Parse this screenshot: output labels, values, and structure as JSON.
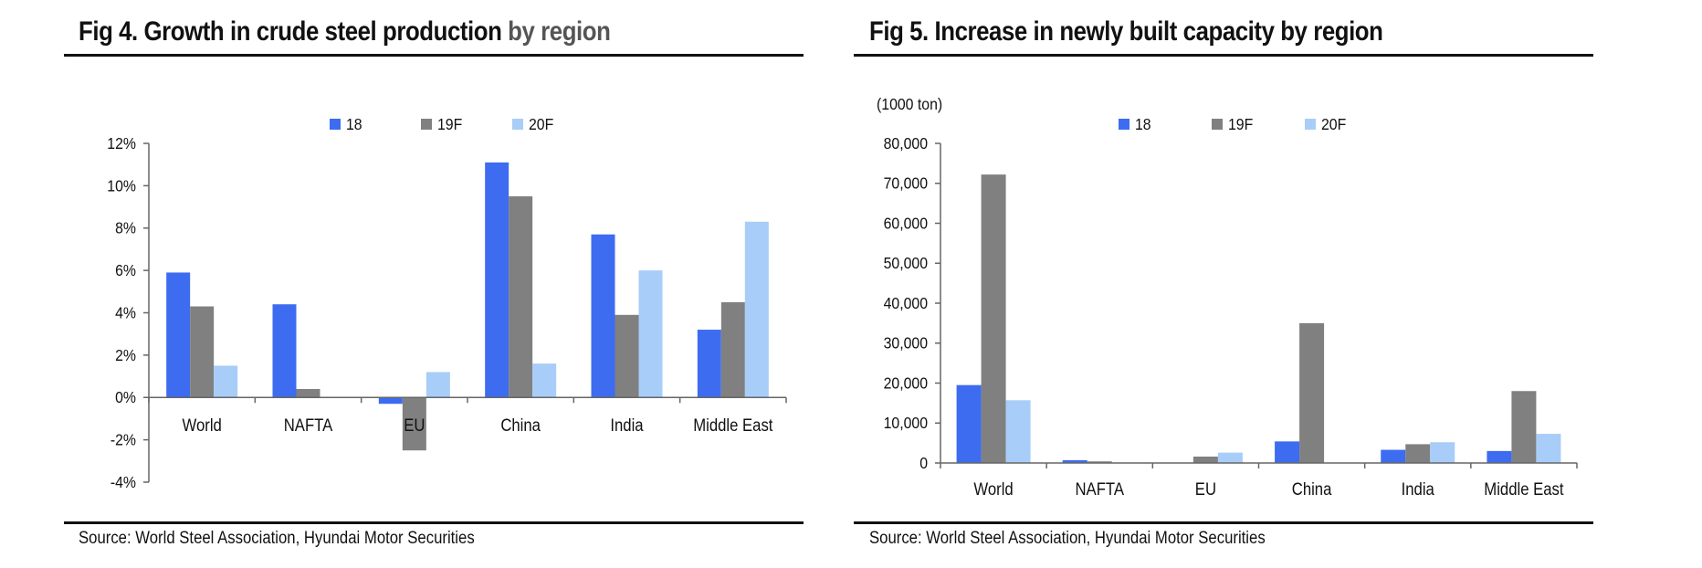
{
  "colors": {
    "s18": "#3d6cf0",
    "s19F": "#808080",
    "s20F": "#a8cdf8",
    "rule": "#111111"
  },
  "fig4": {
    "title_main": "Fig 4. Growth in crude steel production ",
    "title_muted": "by region",
    "source": "Source: World Steel Association, Hyundai Motor Securities"
  },
  "fig5": {
    "title": "Fig 5. Increase in newly built capacity by region",
    "source": "Source: World Steel Association, Hyundai Motor Securities"
  },
  "chart_data": [
    {
      "type": "bar",
      "title": "Fig 4. Growth in crude steel production by region",
      "categories": [
        "World",
        "NAFTA",
        "EU",
        "China",
        "India",
        "Middle East"
      ],
      "series": [
        {
          "name": "18",
          "values": [
            5.9,
            4.4,
            -0.3,
            11.1,
            7.7,
            3.2
          ]
        },
        {
          "name": "19F",
          "values": [
            4.3,
            0.4,
            -2.5,
            9.5,
            3.9,
            4.5
          ]
        },
        {
          "name": "20F",
          "values": [
            1.5,
            0.0,
            1.2,
            1.6,
            6.0,
            8.3
          ]
        }
      ],
      "ylim": [
        -4,
        12
      ],
      "yticks": [
        12,
        10,
        8,
        6,
        4,
        2,
        0,
        -2,
        -4
      ],
      "ytick_labels": [
        "12%",
        "10%",
        "8%",
        "6%",
        "4%",
        "2%",
        "0%",
        "-2%",
        "-4%"
      ],
      "xlabel": "",
      "ylabel": "",
      "grid": false,
      "legend": "top-center"
    },
    {
      "type": "bar",
      "title": "Fig 5. Increase in newly built capacity by region",
      "unit_label": "(1000 ton)",
      "categories": [
        "World",
        "NAFTA",
        "EU",
        "China",
        "India",
        "Middle East"
      ],
      "series": [
        {
          "name": "18",
          "values": [
            19500,
            700,
            0,
            5400,
            3300,
            3000
          ]
        },
        {
          "name": "19F",
          "values": [
            72200,
            400,
            1600,
            35000,
            4700,
            18000
          ]
        },
        {
          "name": "20F",
          "values": [
            15700,
            0,
            2600,
            0,
            5200,
            7300
          ]
        }
      ],
      "ylim": [
        0,
        80000
      ],
      "yticks": [
        80000,
        70000,
        60000,
        50000,
        40000,
        30000,
        20000,
        10000,
        0
      ],
      "ytick_labels": [
        "80,000",
        "70,000",
        "60,000",
        "50,000",
        "40,000",
        "30,000",
        "20,000",
        "10,000",
        "0"
      ],
      "xlabel": "",
      "ylabel": "",
      "grid": false,
      "legend": "top-center"
    }
  ]
}
